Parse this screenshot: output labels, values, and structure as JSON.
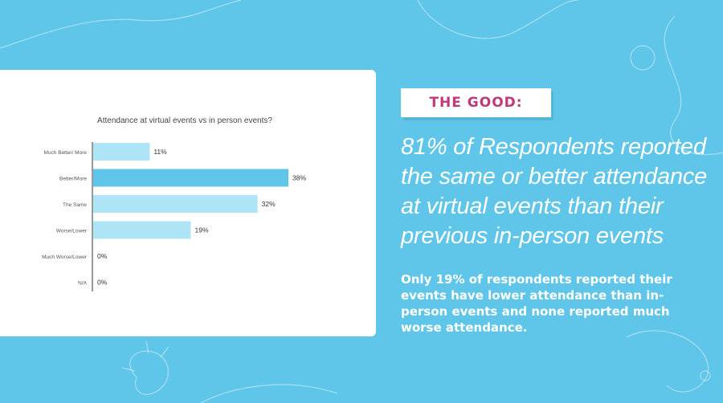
{
  "badge_label": "THE GOOD:",
  "headline": "81% of Respondents reported the same or better attendance at virtual events than their previous in-person events",
  "body": "Only 19% of respondents reported their events have lower attendance than in-person events and none reported much worse attendance.",
  "colors": {
    "background": "#5fc5e9",
    "bar_highlight": "#5fc5e9",
    "bar_default": "#aee5f6",
    "badge_text": "#c0397a"
  },
  "chart_data": {
    "type": "bar",
    "orientation": "horizontal",
    "title": "Attendance at virtual events vs in person events?",
    "categories": [
      "Much Better/ More",
      "Better/More",
      "The Same",
      "Worse/Lower",
      "Much Worse/Lower",
      "N/A"
    ],
    "values": [
      11,
      38,
      32,
      19,
      0,
      0
    ],
    "value_labels": [
      "11%",
      "38%",
      "32%",
      "19%",
      "0%",
      "0%"
    ],
    "highlight_index": 1,
    "xlim": [
      0,
      40
    ],
    "grid": false,
    "legend": "none"
  }
}
